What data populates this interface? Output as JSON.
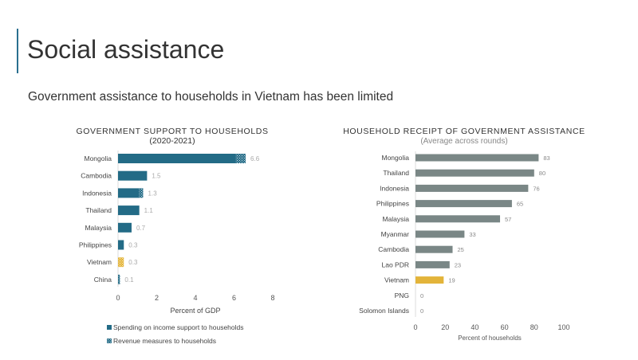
{
  "slide": {
    "title": "Social assistance",
    "subtitle": "Government assistance to households in Vietnam has been limited"
  },
  "colors": {
    "teal": "#236b86",
    "highlight": "#e3b43a",
    "grey": "#7a8786"
  },
  "chart_data": [
    {
      "type": "bar",
      "orientation": "horizontal",
      "stacked": true,
      "title": "GOVERNMENT SUPPORT TO HOUSEHOLDS",
      "subtitle": "(2020-2021)",
      "xlabel": "Percent of GDP",
      "xlim": [
        0,
        8
      ],
      "xticks": [
        "0",
        "2",
        "4",
        "6",
        "8"
      ],
      "categories": [
        "Mongolia",
        "Cambodia",
        "Indonesia",
        "Thailand",
        "Malaysia",
        "Philippines",
        "Vietnam",
        "China"
      ],
      "series": [
        {
          "name": "Spending on income support to households",
          "values": [
            6.1,
            1.5,
            1.1,
            1.1,
            0.7,
            0.3,
            0,
            0
          ]
        },
        {
          "name": "Revenue measures to households",
          "values": [
            0.5,
            0,
            0.2,
            0,
            0,
            0,
            0.3,
            0.1
          ]
        }
      ],
      "data_labels": [
        "6.6",
        "1.5",
        "1.3",
        "1.1",
        "0.7",
        "0.3",
        "0.3",
        "0.1"
      ],
      "highlight": "Vietnam",
      "legend": "bottom"
    },
    {
      "type": "bar",
      "orientation": "horizontal",
      "title": "HOUSEHOLD RECEIPT OF GOVERNMENT ASSISTANCE",
      "subtitle": "(Average across rounds)",
      "xlabel": "Percent of households",
      "xlim": [
        0,
        100
      ],
      "xticks": [
        "0",
        "20",
        "40",
        "60",
        "80",
        "100"
      ],
      "categories": [
        "Mongolia",
        "Thailand",
        "Indonesia",
        "Philippines",
        "Malaysia",
        "Myanmar",
        "Cambodia",
        "Lao PDR",
        "Vietnam",
        "PNG",
        "Solomon Islands"
      ],
      "values": [
        83,
        80,
        76,
        65,
        57,
        33,
        25,
        23,
        19,
        0,
        0
      ],
      "data_labels": [
        "83",
        "80",
        "76",
        "65",
        "57",
        "33",
        "25",
        "23",
        "19",
        "0",
        "0"
      ],
      "highlight": "Vietnam"
    }
  ]
}
